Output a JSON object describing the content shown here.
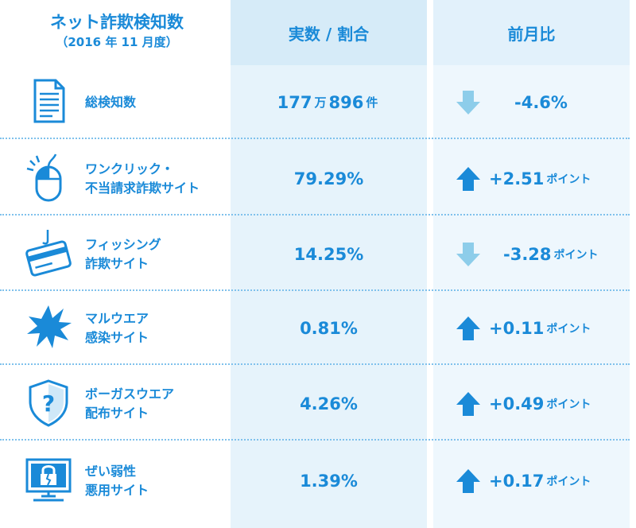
{
  "header": {
    "title_main": "ネット詐欺検知数",
    "title_sub": "（2016 年 11 月度）",
    "col_value": "実数 / 割合",
    "col_change": "前月比"
  },
  "colors": {
    "text": "#1a8ad8",
    "up_arrow": "#1a8ad8",
    "down_arrow": "#8dcdea",
    "col_value_bg": "#e6f3fb",
    "col_change_bg": "#eef7fd"
  },
  "rows": [
    {
      "icon": "document-icon",
      "label_lines": [
        "総検知数"
      ],
      "value_parts": [
        "177",
        "万",
        "896",
        "件"
      ],
      "direction": "down",
      "change": "-4.6%",
      "change_unit": ""
    },
    {
      "icon": "mouse-icon",
      "label_lines": [
        "ワンクリック・",
        "不当請求詐欺サイト"
      ],
      "value": "79.29%",
      "direction": "up",
      "change": "+2.51",
      "change_unit": "ポイント"
    },
    {
      "icon": "credit-card-hook-icon",
      "label_lines": [
        "フィッシング",
        "詐欺サイト"
      ],
      "value": "14.25%",
      "direction": "down",
      "change": "-3.28",
      "change_unit": "ポイント"
    },
    {
      "icon": "virus-burst-icon",
      "label_lines": [
        "マルウエア",
        "感染サイト"
      ],
      "value": "0.81%",
      "direction": "up",
      "change": "+0.11",
      "change_unit": "ポイント"
    },
    {
      "icon": "shield-question-icon",
      "label_lines": [
        "ボーガスウエア",
        "配布サイト"
      ],
      "value": "4.26%",
      "direction": "up",
      "change": "+0.49",
      "change_unit": "ポイント"
    },
    {
      "icon": "monitor-broken-lock-icon",
      "label_lines": [
        "ぜい弱性",
        "悪用サイト"
      ],
      "value": "1.39%",
      "direction": "up",
      "change": "+0.17",
      "change_unit": "ポイント"
    }
  ]
}
